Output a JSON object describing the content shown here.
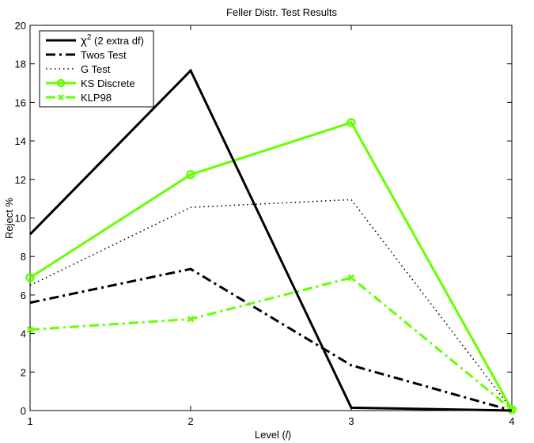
{
  "chart_data": {
    "type": "line",
    "title": "Feller Distr. Test Results",
    "xlabel_prefix": "Level (",
    "xlabel_var": "l",
    "xlabel_suffix": ")",
    "ylabel": "Reject %",
    "x": [
      1,
      2,
      3,
      4
    ],
    "xlim": [
      1,
      4
    ],
    "ylim": [
      0,
      20
    ],
    "xticks": [
      1,
      2,
      3,
      4
    ],
    "yticks": [
      0,
      2,
      4,
      6,
      8,
      10,
      12,
      14,
      16,
      18,
      20
    ],
    "grid": false,
    "legend_position": "top-left",
    "series": [
      {
        "name_main": "χ",
        "name_sup": "2",
        "name_rest": " (2 extra df)",
        "values": [
          9.15,
          17.65,
          0.15,
          0.0
        ],
        "color": "#000000",
        "style": "solid",
        "marker": "none"
      },
      {
        "name": "Twos Test",
        "values": [
          5.6,
          7.35,
          2.35,
          0.0
        ],
        "color": "#000000",
        "style": "dashdot",
        "marker": "none"
      },
      {
        "name": "G Test",
        "values": [
          6.5,
          10.55,
          10.95,
          0.05
        ],
        "color": "#000000",
        "style": "dotted",
        "marker": "none"
      },
      {
        "name": "KS Discrete",
        "values": [
          6.9,
          12.25,
          14.95,
          0.05
        ],
        "color": "#66ff00",
        "style": "solid",
        "marker": "circle"
      },
      {
        "name": "KLP98",
        "values": [
          4.2,
          4.75,
          6.9,
          0.05
        ],
        "color": "#66ff00",
        "style": "dashdot",
        "marker": "x"
      }
    ]
  }
}
